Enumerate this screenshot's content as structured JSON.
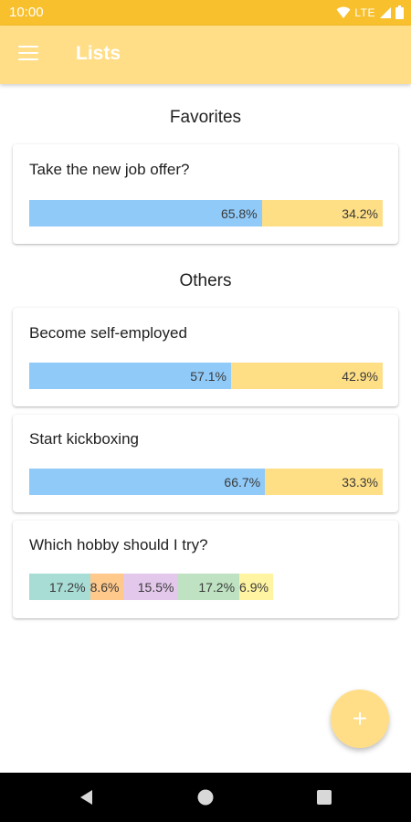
{
  "status_bar": {
    "time": "10:00",
    "network": "LTE",
    "icons": [
      "wifi-icon",
      "signal-icon",
      "battery-icon"
    ]
  },
  "app_bar": {
    "menu_icon": "menu-icon",
    "title": "Lists"
  },
  "sections": {
    "favorites": {
      "title": "Favorites",
      "cards": [
        {
          "title": "Take the new job offer?",
          "segments": [
            {
              "label": "65.8%",
              "value": 65.8,
              "color": "#90caf9"
            },
            {
              "label": "34.2%",
              "value": 34.2,
              "color": "#ffdf85"
            }
          ]
        }
      ]
    },
    "others": {
      "title": "Others",
      "cards": [
        {
          "title": "Become self-employed",
          "segments": [
            {
              "label": "57.1%",
              "value": 57.1,
              "color": "#90caf9"
            },
            {
              "label": "42.9%",
              "value": 42.9,
              "color": "#ffdf85"
            }
          ]
        },
        {
          "title": "Start kickboxing",
          "segments": [
            {
              "label": "66.7%",
              "value": 66.7,
              "color": "#90caf9"
            },
            {
              "label": "33.3%",
              "value": 33.3,
              "color": "#ffdf85"
            }
          ]
        },
        {
          "title": "Which hobby should I try?",
          "segments": [
            {
              "label": "17.2%",
              "value": 17.2,
              "color": "#a8ddd6"
            },
            {
              "label": "8.6%",
              "value": 8.6,
              "color": "#ffc98c"
            },
            {
              "label": "15.5%",
              "value": 15.5,
              "color": "#e3c8ec"
            },
            {
              "label": "17.2%",
              "value": 17.2,
              "color": "#bfe3c2"
            },
            {
              "label": "6.9%",
              "value": 6.9,
              "color": "#fff4a1"
            }
          ]
        }
      ]
    }
  },
  "fab": {
    "label": "+",
    "icon": "plus-icon"
  },
  "nav_bar": {
    "buttons": [
      "back-icon",
      "home-icon",
      "recents-icon"
    ]
  }
}
